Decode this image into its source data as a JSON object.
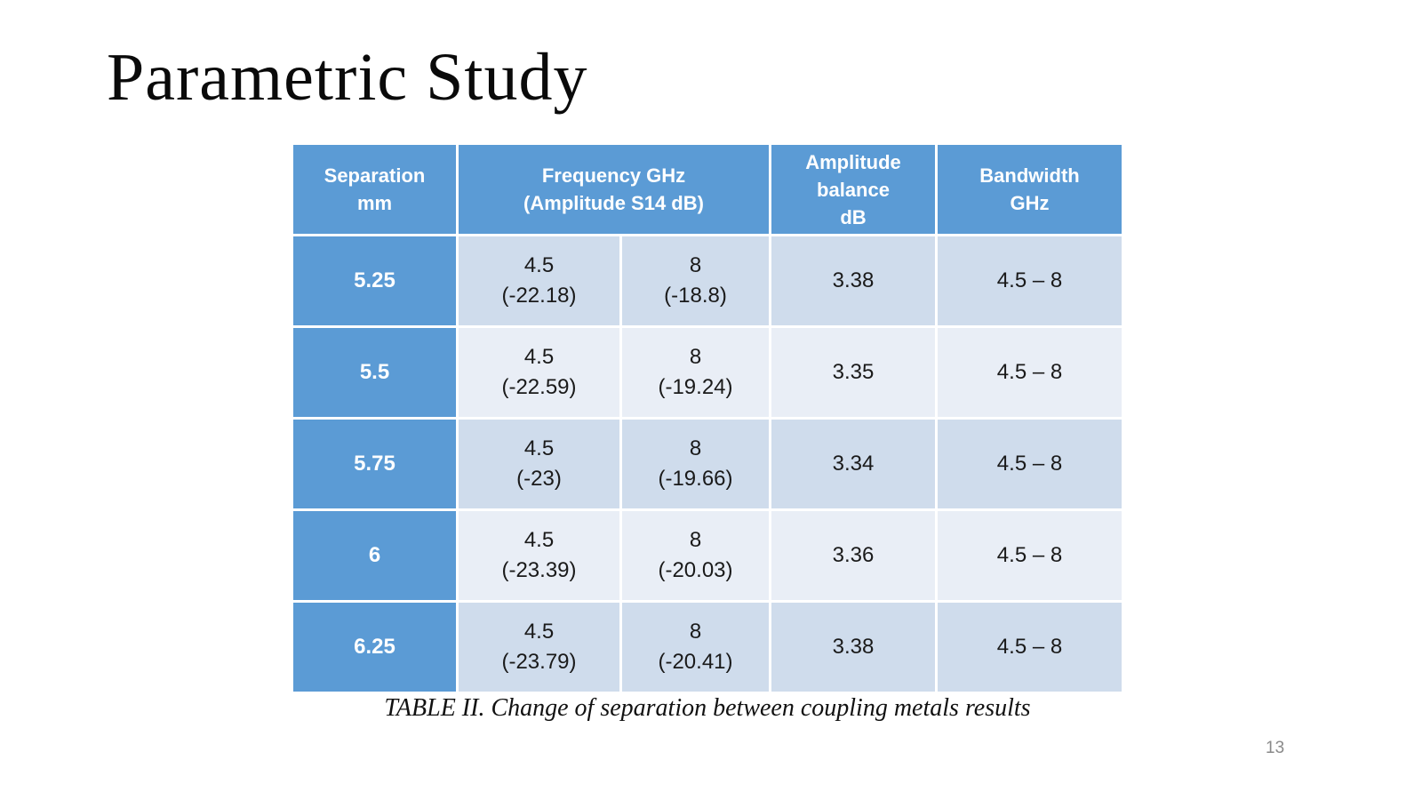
{
  "slide": {
    "title": "Parametric Study",
    "caption": "TABLE II. Change of separation between coupling metals results",
    "page_number": "13"
  },
  "colors": {
    "header_fill": "#5B9BD5",
    "row_band_dark": "#CFDCEC",
    "row_band_light": "#E9EEF6",
    "header_text": "#FFFFFF",
    "body_text": "#1A1A1A",
    "page_number_text": "#8A8A8A"
  },
  "table": {
    "header": {
      "separation_line1": "Separation",
      "separation_line2": "mm",
      "frequency_line1": "Frequency GHz",
      "frequency_line2": "(Amplitude S14 dB)",
      "amplitude_line1": "Amplitude",
      "amplitude_line2": "balance",
      "amplitude_line3": "dB",
      "bandwidth_line1": "Bandwidth",
      "bandwidth_line2": "GHz"
    },
    "rows": [
      {
        "separation": "5.25",
        "freq_low": "4.5",
        "amp_low": "(-22.18)",
        "freq_high": "8",
        "amp_high": "(-18.8)",
        "balance": "3.38",
        "bandwidth": "4.5 – 8"
      },
      {
        "separation": "5.5",
        "freq_low": "4.5",
        "amp_low": "(-22.59)",
        "freq_high": "8",
        "amp_high": "(-19.24)",
        "balance": "3.35",
        "bandwidth": "4.5 – 8"
      },
      {
        "separation": "5.75",
        "freq_low": "4.5",
        "amp_low": "(-23)",
        "freq_high": "8",
        "amp_high": "(-19.66)",
        "balance": "3.34",
        "bandwidth": "4.5 – 8"
      },
      {
        "separation": "6",
        "freq_low": "4.5",
        "amp_low": "(-23.39)",
        "freq_high": "8",
        "amp_high": "(-20.03)",
        "balance": "3.36",
        "bandwidth": "4.5 – 8"
      },
      {
        "separation": "6.25",
        "freq_low": "4.5",
        "amp_low": "(-23.79)",
        "freq_high": "8",
        "amp_high": "(-20.41)",
        "balance": "3.38",
        "bandwidth": "4.5 – 8"
      }
    ]
  }
}
